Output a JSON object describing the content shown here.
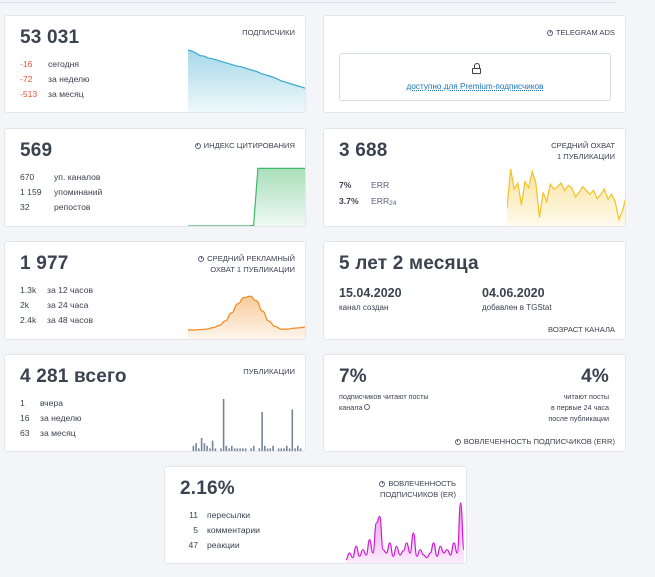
{
  "subscribers": {
    "value": "53 031",
    "caption": "ПОДПИСЧИКИ",
    "rows": [
      {
        "num": "-16",
        "label": "сегодня"
      },
      {
        "num": "-72",
        "label": "за неделю"
      },
      {
        "num": "-513",
        "label": "за месяц"
      }
    ],
    "trend": [
      100,
      98,
      95,
      91,
      90,
      87,
      86,
      84,
      82,
      80,
      78,
      76,
      74,
      73,
      71,
      69,
      67,
      65,
      62,
      60,
      58,
      56,
      53,
      50,
      48,
      46,
      44,
      42,
      40,
      38
    ]
  },
  "telegram_ads": {
    "caption": "TELEGRAM ADS",
    "premium_link": "доступно для Premium-подписчиков"
  },
  "citation": {
    "value": "569",
    "caption": "ИНДЕКС ЦИТИРОВАНИЯ",
    "rows": [
      {
        "num": "670",
        "label": "уп. каналов"
      },
      {
        "num": "1 159",
        "label": "упоминаний"
      },
      {
        "num": "32",
        "label": "репостов"
      }
    ],
    "trend": [
      0,
      0,
      0,
      0,
      0,
      0,
      0,
      0,
      0,
      0,
      0,
      0,
      0,
      0,
      0,
      1,
      100,
      100,
      100,
      100,
      100,
      100,
      100,
      100,
      100,
      100,
      100,
      100
    ]
  },
  "avg_reach": {
    "value": "3 688",
    "caption_line1": "СРЕДНИЙ ОХВАТ",
    "caption_line2": "1 ПУБЛИКАЦИИ",
    "rows": [
      {
        "num": "7%",
        "label": "ERR",
        "sub": ""
      },
      {
        "num": "3.7%",
        "label": "ERR",
        "sub": "24"
      }
    ],
    "trend": [
      30,
      92,
      60,
      70,
      35,
      72,
      62,
      88,
      70,
      15,
      55,
      40,
      68,
      60,
      64,
      70,
      58,
      66,
      62,
      48,
      55,
      64,
      58,
      52,
      58,
      45,
      52,
      60,
      44,
      52,
      40,
      12,
      25,
      48
    ]
  },
  "ad_reach": {
    "value": "1 977",
    "caption_line1": "СРЕДНИЙ РЕКЛАМНЫЙ",
    "caption_line2": "ОХВАТ 1 ПУБЛИКАЦИИ",
    "rows": [
      {
        "num": "1.3k",
        "label": "за 12 часов"
      },
      {
        "num": "2k",
        "label": "за 24 часа"
      },
      {
        "num": "2.4k",
        "label": "за 48 часов"
      }
    ],
    "trend": [
      20,
      20,
      21,
      22,
      25,
      30,
      40,
      58,
      78,
      92,
      95,
      85,
      62,
      40,
      28,
      22,
      22,
      24,
      25,
      27
    ]
  },
  "age": {
    "value": "5 лет 2 месяца",
    "created_date": "15.04.2020",
    "created_label": "канал создан",
    "added_date": "04.06.2020",
    "added_label": "добавлен в TGStat",
    "caption": "ВОЗРАСТ КАНАЛА"
  },
  "publications": {
    "value": "4 281 всего",
    "caption": "ПУБЛИКАЦИИ",
    "rows": [
      {
        "num": "1",
        "label": "вчера"
      },
      {
        "num": "16",
        "label": "за неделю"
      },
      {
        "num": "63",
        "label": "за месяц"
      }
    ],
    "bars": [
      2,
      3,
      1,
      5,
      3,
      2,
      1,
      4,
      1,
      0,
      1,
      20,
      2,
      1,
      2,
      1,
      1,
      1,
      1,
      1,
      0,
      1,
      2,
      0,
      1,
      15,
      2,
      1,
      1,
      2,
      0,
      1,
      1,
      1,
      2,
      1,
      16,
      1,
      2,
      1
    ]
  },
  "engagement_err": {
    "left_value": "7%",
    "left_label_line1": "подписчиков читают посты",
    "left_label_line2": "канала",
    "right_value": "4%",
    "right_label_line1": "читают посты",
    "right_label_line2": "в первые 24 часа",
    "right_label_line3": "после публикации",
    "caption": "ВОВЛЕЧЕННОСТЬ ПОДПИСЧИКОВ (ERR)"
  },
  "engagement_er": {
    "value": "2.16%",
    "caption_line1": "ВОВЛЕЧЕННОСТЬ",
    "caption_line2": "ПОДПИСЧИКОВ (ER)",
    "rows": [
      {
        "num": "11",
        "label": "пересылки"
      },
      {
        "num": "5",
        "label": "комментарии"
      },
      {
        "num": "47",
        "label": "реакции"
      }
    ],
    "trend": [
      5,
      15,
      8,
      25,
      10,
      20,
      12,
      35,
      15,
      60,
      70,
      20,
      15,
      30,
      10,
      25,
      12,
      18,
      30,
      15,
      45,
      10,
      20,
      12,
      8,
      15,
      30,
      10,
      25,
      15,
      20,
      12,
      30,
      15,
      90,
      20
    ]
  },
  "colors": {
    "blue_line": "#3aa9cf",
    "green_line": "#3fb866",
    "yellow_line": "#f2c225",
    "orange_line": "#f08a1e",
    "bar": "#75869a",
    "magenta_line": "#d21ad6",
    "red_text": "#e0533d",
    "link": "#1a73b8"
  }
}
